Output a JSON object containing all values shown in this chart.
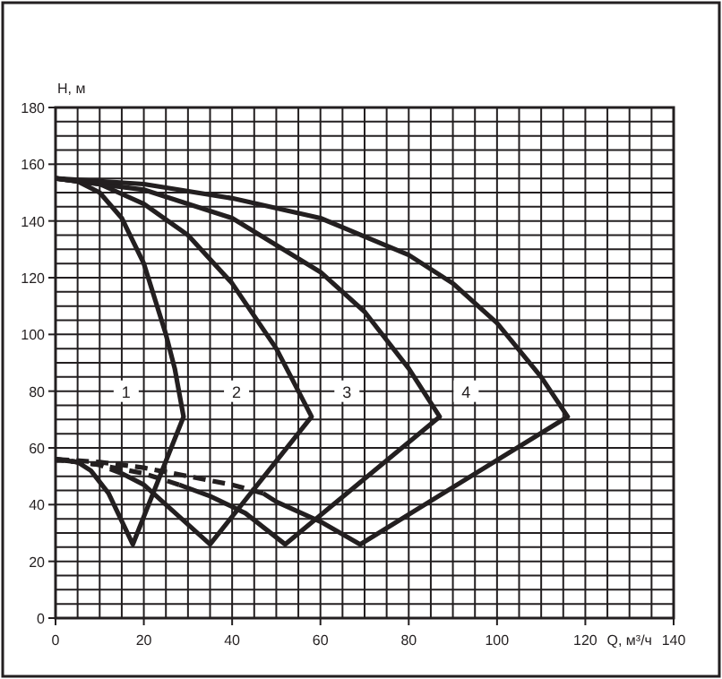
{
  "chart_data": {
    "type": "line",
    "xlabel": "Q, м³/ч",
    "ylabel": "H, м",
    "xlim": [
      0,
      140
    ],
    "ylim": [
      0,
      180
    ],
    "xticks": [
      0,
      {
        "value": 5,
        "label": null
      },
      {
        "value": 10,
        "label": null
      },
      {
        "value": 15,
        "label": null
      },
      20,
      {
        "value": 25,
        "label": null
      },
      {
        "value": 30,
        "label": null
      },
      {
        "value": 35,
        "label": null
      },
      40,
      {
        "value": 45,
        "label": null
      },
      {
        "value": 50,
        "label": null
      },
      {
        "value": 55,
        "label": null
      },
      60,
      {
        "value": 65,
        "label": null
      },
      {
        "value": 70,
        "label": null
      },
      {
        "value": 75,
        "label": null
      },
      80,
      {
        "value": 85,
        "label": null
      },
      {
        "value": 90,
        "label": null
      },
      {
        "value": 95,
        "label": null
      },
      100,
      {
        "value": 105,
        "label": null
      },
      {
        "value": 110,
        "label": null
      },
      {
        "value": 115,
        "label": null
      },
      120,
      {
        "value": 125,
        "label": null
      },
      {
        "value": 130,
        "label": null
      },
      {
        "value": 135,
        "label": null
      },
      140
    ],
    "yticks": [
      0,
      {
        "value": 5,
        "label": null
      },
      {
        "value": 10,
        "label": null
      },
      {
        "value": 15,
        "label": null
      },
      20,
      {
        "value": 25,
        "label": null
      },
      {
        "value": 30,
        "label": null
      },
      {
        "value": 35,
        "label": null
      },
      40,
      {
        "value": 45,
        "label": null
      },
      {
        "value": 50,
        "label": null
      },
      {
        "value": 55,
        "label": null
      },
      60,
      {
        "value": 65,
        "label": null
      },
      {
        "value": 70,
        "label": null
      },
      {
        "value": 75,
        "label": null
      },
      80,
      {
        "value": 85,
        "label": null
      },
      {
        "value": 90,
        "label": null
      },
      {
        "value": 95,
        "label": null
      },
      100,
      {
        "value": 105,
        "label": null
      },
      {
        "value": 110,
        "label": null
      },
      {
        "value": 115,
        "label": null
      },
      120,
      {
        "value": 125,
        "label": null
      },
      {
        "value": 130,
        "label": null
      },
      {
        "value": 135,
        "label": null
      },
      140,
      {
        "value": 145,
        "label": null
      },
      {
        "value": 150,
        "label": null
      },
      {
        "value": 155,
        "label": null
      },
      160,
      {
        "value": 165,
        "label": null
      },
      {
        "value": 170,
        "label": null
      },
      {
        "value": 175,
        "label": null
      },
      180
    ],
    "grid": true,
    "marker": "none",
    "series": [
      {
        "color": "#231f20",
        "line_style": "solid",
        "x": [
          0,
          5,
          10,
          15,
          20,
          25,
          27,
          29,
          17.5,
          12,
          8,
          5
        ],
        "values": [
          155,
          154,
          150,
          141,
          125,
          100,
          88,
          71,
          26,
          44,
          52,
          55
        ]
      },
      {
        "color": "#231f20",
        "line_style": "dashed",
        "x": [
          5,
          0
        ],
        "values": [
          55,
          56
        ]
      },
      {
        "color": "#231f20",
        "line_style": "solid",
        "x": [
          0,
          10,
          20,
          30,
          40,
          50,
          55,
          58,
          35,
          25,
          20,
          15
        ],
        "values": [
          155,
          153,
          146,
          135,
          118,
          95,
          80,
          71,
          26,
          40,
          47,
          51
        ]
      },
      {
        "color": "#231f20",
        "line_style": "dashed",
        "x": [
          15,
          10,
          0
        ],
        "values": [
          51,
          54,
          56
        ]
      },
      {
        "color": "#231f20",
        "line_style": "solid",
        "x": [
          0,
          20,
          40,
          60,
          70,
          80,
          87,
          52,
          43,
          35,
          28
        ],
        "values": [
          155,
          151,
          141,
          122,
          108,
          88,
          71,
          26,
          37,
          43,
          47
        ]
      },
      {
        "color": "#231f20",
        "line_style": "dashed",
        "x": [
          28,
          20,
          10,
          0
        ],
        "values": [
          47,
          51,
          54,
          56
        ]
      },
      {
        "color": "#231f20",
        "line_style": "solid",
        "x": [
          0,
          20,
          40,
          60,
          80,
          90,
          100,
          110,
          116,
          69,
          60,
          50,
          47
        ],
        "values": [
          155,
          153,
          148,
          141,
          128,
          118,
          104,
          85,
          71,
          26,
          34,
          41,
          44
        ]
      },
      {
        "color": "#231f20",
        "line_style": "dashed",
        "x": [
          47,
          40,
          30,
          20,
          10,
          0
        ],
        "values": [
          44,
          47,
          50,
          53,
          55,
          56
        ]
      }
    ],
    "annotations": [
      {
        "text": "1",
        "x": 16,
        "y": 80
      },
      {
        "text": "2",
        "x": 41,
        "y": 80
      },
      {
        "text": "3",
        "x": 66,
        "y": 80
      },
      {
        "text": "4",
        "x": 93,
        "y": 80
      }
    ]
  }
}
